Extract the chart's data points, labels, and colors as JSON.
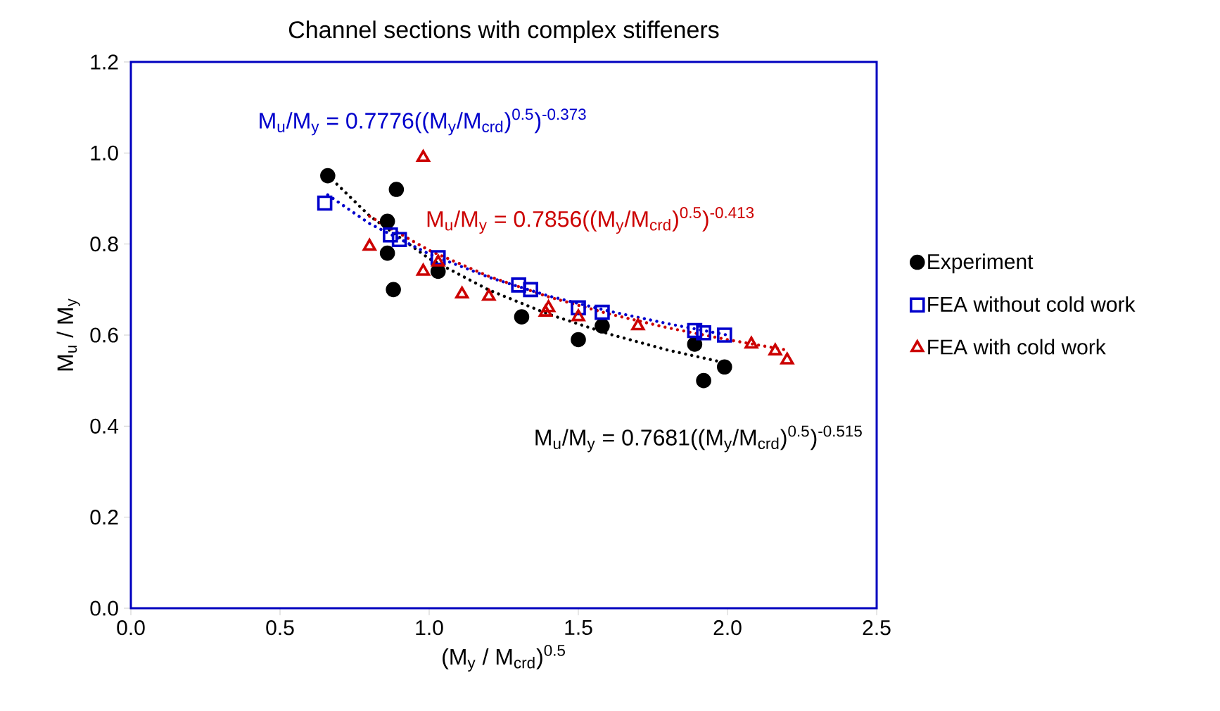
{
  "chart_data": {
    "type": "scatter",
    "title": "Channel sections with complex stiffeners",
    "xlabel": "(M$_{y}$ / M$_{crd}$)$^{0.5}$",
    "ylabel": "M$_{u}$ / M$_{y}$",
    "xlim": [
      0,
      2.5
    ],
    "ylim": [
      0,
      1.2
    ],
    "xticks": [
      {
        "value": 0,
        "label": "0.0"
      },
      {
        "value": 0.5,
        "label": "0.5"
      },
      {
        "value": 1,
        "label": "1.0"
      },
      {
        "value": 1.5,
        "label": "1.5"
      },
      {
        "value": 2,
        "label": "2.0"
      },
      {
        "value": 2.5,
        "label": "2.5"
      }
    ],
    "yticks": [
      {
        "value": 0,
        "label": "0.0"
      },
      {
        "value": 0.2,
        "label": "0.2"
      },
      {
        "value": 0.4,
        "label": "0.4"
      },
      {
        "value": 0.6,
        "label": "0.6"
      },
      {
        "value": 0.8,
        "label": "0.8"
      },
      {
        "value": 1,
        "label": "1.0"
      },
      {
        "value": 1.2,
        "label": "1.2"
      }
    ],
    "legend": "right",
    "series": [
      {
        "name": "Experiment",
        "color": "#000000",
        "marker": "circle",
        "x": [
          0.66,
          0.89,
          0.86,
          0.86,
          0.88,
          1.03,
          1.31,
          1.5,
          1.58,
          1.89,
          1.92,
          1.99
        ],
        "values": [
          0.95,
          0.92,
          0.85,
          0.78,
          0.7,
          0.74,
          0.64,
          0.59,
          0.62,
          0.58,
          0.5,
          0.53
        ]
      },
      {
        "name": "FEA without cold work",
        "color": "#0000cc",
        "marker": "square",
        "x": [
          0.65,
          0.87,
          0.9,
          1.03,
          1.3,
          1.34,
          1.5,
          1.58,
          1.89,
          1.92,
          1.99
        ],
        "values": [
          0.89,
          0.82,
          0.81,
          0.77,
          0.71,
          0.7,
          0.66,
          0.65,
          0.61,
          0.605,
          0.6
        ]
      },
      {
        "name": "FEA with cold work",
        "color": "#cc0000",
        "marker": "triangle",
        "x": [
          0.98,
          0.8,
          0.98,
          1.03,
          1.11,
          1.2,
          1.39,
          1.4,
          1.5,
          1.7,
          2.08,
          2.16,
          2.2
        ],
        "values": [
          0.99,
          0.795,
          0.74,
          0.76,
          0.69,
          0.685,
          0.65,
          0.66,
          0.64,
          0.62,
          0.58,
          0.565,
          0.545
        ]
      },
      {
        "type": "line",
        "color": "#000000",
        "line_style": "dotted",
        "marker": "none",
        "x": [
          0.66,
          0.8,
          1.0,
          1.2,
          1.4,
          1.6,
          1.8,
          2.0
        ],
        "values": [
          0.951,
          0.862,
          0.768,
          0.699,
          0.646,
          0.603,
          0.567,
          0.538
        ]
      },
      {
        "type": "line",
        "color": "#0000cc",
        "line_style": "dotted",
        "marker": "none",
        "x": [
          0.66,
          0.8,
          1.0,
          1.2,
          1.4,
          1.6,
          1.8,
          2.0
        ],
        "values": [
          0.908,
          0.845,
          0.778,
          0.727,
          0.686,
          0.653,
          0.625,
          0.6
        ]
      },
      {
        "type": "line",
        "color": "#cc0000",
        "line_style": "dotted",
        "marker": "none",
        "x": [
          0.8,
          1.0,
          1.2,
          1.4,
          1.6,
          1.8,
          2.0,
          2.2
        ],
        "values": [
          0.861,
          0.786,
          0.729,
          0.684,
          0.647,
          0.616,
          0.59,
          0.567
        ]
      }
    ],
    "annotations": [
      "M$_{u}$/M$_{y}$ = 0.7681((M$_{y}$/M$_{crd}$)$^{0.5}$)$^{-0.515}$",
      "M$_{u}$/M$_{y}$ = 0.7776((M$_{y}$/M$_{crd}$)$^{0.5}$)$^{-0.373}$",
      "M$_{u}$/M$_{y}$ = 0.7856((M$_{y}$/M$_{crd}$)$^{0.5}$)$^{-0.413}$"
    ]
  }
}
